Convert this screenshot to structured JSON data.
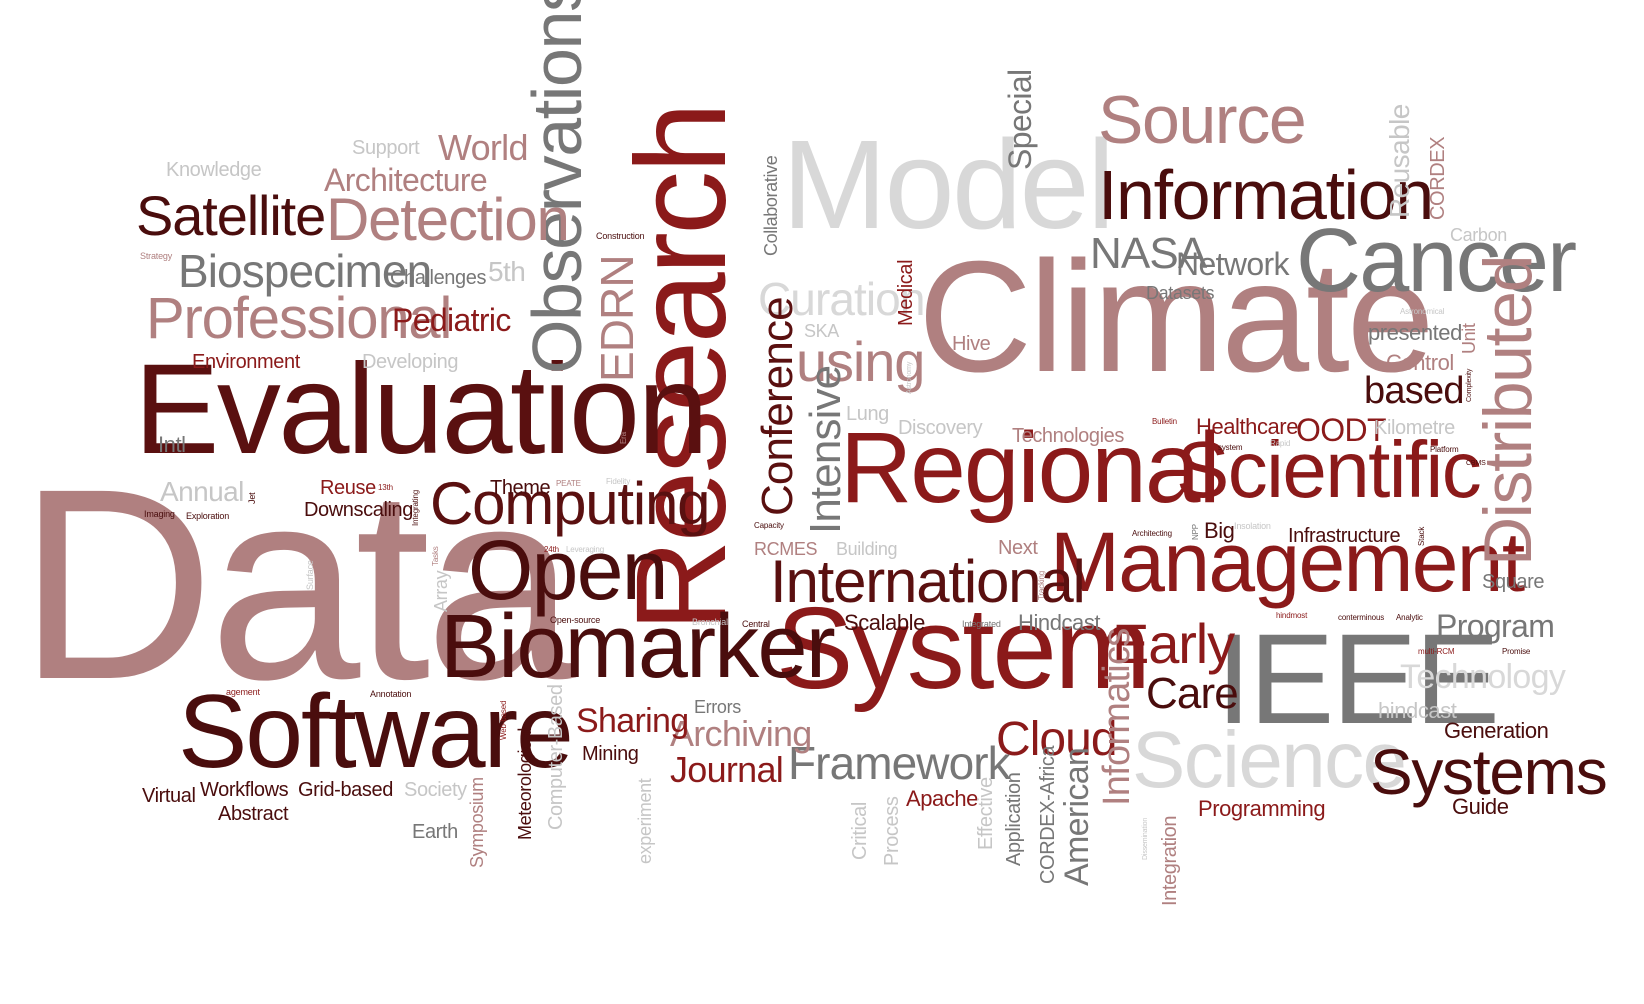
{
  "cloud": {
    "colors": {
      "maroon": "#8b1a1a",
      "dark": "#4a0d0d",
      "dark2": "#5a1010",
      "rose": "#b08080",
      "rose2": "#a36f6f",
      "grey": "#777777",
      "light_grey": "#c6c6c6",
      "very_light_grey": "#d8d8d8"
    },
    "words": [
      "Data",
      "Climate",
      "Research",
      "Model",
      "Evaluation",
      "Regional",
      "System",
      "Management",
      "Scientific",
      "IEEE",
      "Software",
      "Biomarker",
      "Source",
      "Information",
      "Cancer",
      "Observations",
      "Open",
      "Computing",
      "International",
      "Detection",
      "Professional",
      "Satellite",
      "Science",
      "Systems",
      "Distributed",
      "Biospecimen",
      "Curation",
      "using",
      "Conference",
      "Intensive",
      "EDRN",
      "Early",
      "Cloud",
      "Care",
      "Framework",
      "Journal",
      "Archiving",
      "Sharing",
      "NASA",
      "Network",
      "Architecture",
      "World",
      "Pediatric",
      "Special",
      "Informatics",
      "American",
      "Program",
      "Technology",
      "based",
      "OODT",
      "Healthcare",
      "Infrastructure",
      "Generation",
      "Guide",
      "Programming",
      "Apache",
      "Scalable",
      "Hindcast",
      "Next",
      "Big",
      "Square",
      "hindcast",
      "Control",
      "presented",
      "Kilometre",
      "Unit",
      "Medical",
      "Reusable",
      "CORDEX",
      "Carbon",
      "Datasets",
      "Hive",
      "SKA",
      "Lung",
      "Discovery",
      "Technologies",
      "Theme",
      "Downscaling",
      "Reuse",
      "Annual",
      "Intl",
      "Environment",
      "Developing",
      "Challenges",
      "5th",
      "Knowledge",
      "Support",
      "Workflows",
      "Grid-based",
      "Virtual",
      "Abstract",
      "Society",
      "Earth",
      "Symposium",
      "Meteorological",
      "Computer-Based",
      "Mining",
      "Errors",
      "experiment",
      "Critical",
      "Process",
      "Effective",
      "Application",
      "CORDEX-Africa",
      "Integration",
      "RCMES",
      "Building",
      "Collaborative",
      "Array",
      "Construction",
      "Strategy",
      "Imaging",
      "Exploration",
      "Jet",
      "13th",
      "Integrating",
      "PEATE",
      "Fidelity",
      "Era",
      "24th",
      "Leveraging",
      "Tasks",
      "Surface",
      "agement",
      "Annotation",
      "Web-based",
      "Open-source",
      "Bronchial",
      "Central",
      "Integrated",
      "Tracking",
      "Capacity",
      "Bulletin",
      "system",
      "Rapid",
      "Astronomy",
      "Insolation",
      "Architecting",
      "NPP",
      "Stack",
      "Platform",
      "CBMS",
      "Complexity",
      "Astronomical",
      "hindmost",
      "conterminous",
      "Analytic",
      "multi-RCM",
      "Promise",
      "Dissemination"
    ]
  }
}
